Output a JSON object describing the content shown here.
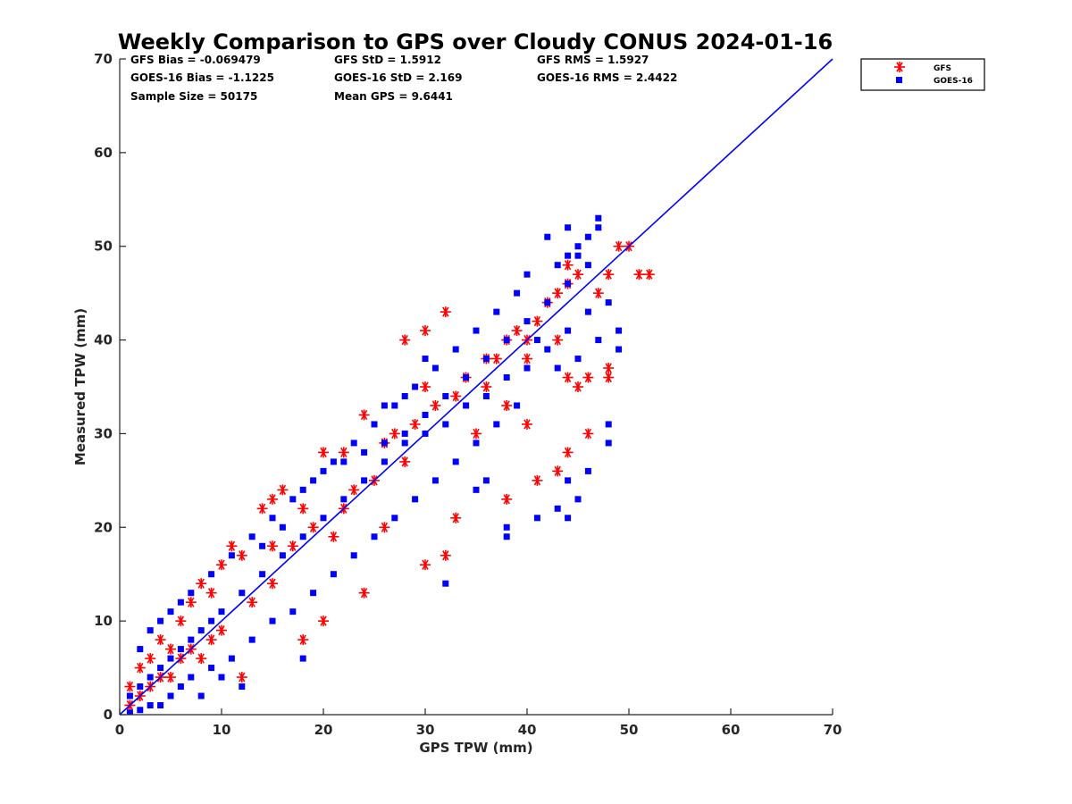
{
  "chart_data": {
    "type": "scatter",
    "title": "Weekly Comparison to GPS over Cloudy CONUS 2024-01-16",
    "xlabel": "GPS TPW (mm)",
    "ylabel": "Measured TPW (mm)",
    "xlim": [
      0,
      70
    ],
    "ylim": [
      0,
      70
    ],
    "xticks": [
      "0",
      "10",
      "20",
      "30",
      "40",
      "50",
      "60",
      "70"
    ],
    "yticks": [
      "0",
      "10",
      "20",
      "30",
      "40",
      "50",
      "60",
      "70"
    ],
    "grid": false,
    "legend_position": "outside top-right",
    "stats": [
      [
        "GFS Bias = -0.069479",
        "GFS StD = 1.5912",
        "GFS RMS = 1.5927"
      ],
      [
        "GOES-16 Bias = -1.1225",
        "GOES-16 StD = 2.169",
        "GOES-16 RMS = 2.4422"
      ],
      [
        "Sample Size = 50175",
        "Mean GPS = 9.6441"
      ]
    ],
    "reference_line": {
      "x": [
        0,
        70
      ],
      "y": [
        0,
        70
      ],
      "color": "#0000ff"
    },
    "series": [
      {
        "name": "GFS",
        "marker": "asterisk",
        "color": "#ff0000",
        "points": [
          [
            1,
            3
          ],
          [
            2,
            5
          ],
          [
            3,
            6
          ],
          [
            4,
            8
          ],
          [
            5,
            7
          ],
          [
            6,
            10
          ],
          [
            7,
            12
          ],
          [
            8,
            14
          ],
          [
            9,
            13
          ],
          [
            10,
            16
          ],
          [
            11,
            18
          ],
          [
            12,
            17
          ],
          [
            14,
            22
          ],
          [
            15,
            23
          ],
          [
            16,
            24
          ],
          [
            12,
            4
          ],
          [
            18,
            8
          ],
          [
            20,
            10
          ],
          [
            24,
            13
          ],
          [
            20,
            28
          ],
          [
            22,
            28
          ],
          [
            24,
            32
          ],
          [
            30,
            16
          ],
          [
            32,
            17
          ],
          [
            33,
            21
          ],
          [
            30,
            35
          ],
          [
            32,
            43
          ],
          [
            28,
            40
          ],
          [
            30,
            41
          ],
          [
            38,
            23
          ],
          [
            41,
            25
          ],
          [
            43,
            26
          ],
          [
            44,
            28
          ],
          [
            46,
            30
          ],
          [
            38,
            33
          ],
          [
            40,
            31
          ],
          [
            44,
            36
          ],
          [
            45,
            35
          ],
          [
            46,
            36
          ],
          [
            47,
            45
          ],
          [
            48,
            47
          ],
          [
            49,
            50
          ],
          [
            50,
            50
          ],
          [
            51,
            47
          ],
          [
            52,
            47
          ],
          [
            48,
            37
          ],
          [
            48,
            36
          ],
          [
            43,
            40
          ],
          [
            44,
            46
          ],
          [
            45,
            47
          ],
          [
            26,
            29
          ],
          [
            27,
            30
          ],
          [
            35,
            30
          ],
          [
            36,
            35
          ],
          [
            40,
            40
          ],
          [
            42,
            44
          ],
          [
            34,
            36
          ],
          [
            36,
            38
          ],
          [
            38,
            40
          ],
          [
            40,
            38
          ],
          [
            28,
            27
          ],
          [
            25,
            25
          ],
          [
            22,
            22
          ],
          [
            26,
            20
          ],
          [
            19,
            20
          ],
          [
            17,
            18
          ],
          [
            13,
            12
          ],
          [
            9,
            8
          ],
          [
            6,
            6
          ],
          [
            4,
            4
          ],
          [
            3,
            3
          ],
          [
            2,
            2
          ],
          [
            1,
            1
          ],
          [
            7,
            7
          ],
          [
            15,
            14
          ],
          [
            21,
            19
          ],
          [
            23,
            24
          ],
          [
            29,
            31
          ],
          [
            31,
            33
          ],
          [
            33,
            34
          ],
          [
            37,
            38
          ],
          [
            39,
            41
          ],
          [
            41,
            42
          ],
          [
            43,
            45
          ],
          [
            15,
            18
          ],
          [
            18,
            22
          ],
          [
            10,
            9
          ],
          [
            8,
            6
          ],
          [
            5,
            4
          ],
          [
            44,
            48
          ]
        ]
      },
      {
        "name": "GOES-16",
        "marker": "square",
        "color": "#0000ff",
        "points": [
          [
            1,
            2
          ],
          [
            2,
            3
          ],
          [
            3,
            4
          ],
          [
            4,
            5
          ],
          [
            5,
            6
          ],
          [
            6,
            7
          ],
          [
            7,
            8
          ],
          [
            8,
            9
          ],
          [
            9,
            10
          ],
          [
            10,
            11
          ],
          [
            12,
            13
          ],
          [
            14,
            15
          ],
          [
            16,
            17
          ],
          [
            18,
            19
          ],
          [
            20,
            21
          ],
          [
            22,
            23
          ],
          [
            24,
            25
          ],
          [
            26,
            27
          ],
          [
            28,
            30
          ],
          [
            30,
            32
          ],
          [
            32,
            34
          ],
          [
            34,
            36
          ],
          [
            36,
            38
          ],
          [
            38,
            40
          ],
          [
            40,
            42
          ],
          [
            42,
            44
          ],
          [
            44,
            46
          ],
          [
            46,
            48
          ],
          [
            47,
            52
          ],
          [
            45,
            50
          ],
          [
            44,
            52
          ],
          [
            41,
            40
          ],
          [
            49,
            39
          ],
          [
            49,
            41
          ],
          [
            48,
            31
          ],
          [
            48,
            29
          ],
          [
            43,
            22
          ],
          [
            41,
            21
          ],
          [
            38,
            19
          ],
          [
            38,
            20
          ],
          [
            32,
            14
          ],
          [
            35,
            24
          ],
          [
            36,
            25
          ],
          [
            46,
            26
          ],
          [
            44,
            25
          ],
          [
            45,
            23
          ],
          [
            44,
            21
          ],
          [
            18,
            6
          ],
          [
            12,
            3
          ],
          [
            10,
            4
          ],
          [
            8,
            2
          ],
          [
            6,
            3
          ],
          [
            4,
            1
          ],
          [
            2,
            0.5
          ],
          [
            1,
            0.2
          ],
          [
            3,
            1
          ],
          [
            5,
            2
          ],
          [
            7,
            4
          ],
          [
            9,
            5
          ],
          [
            11,
            6
          ],
          [
            13,
            8
          ],
          [
            15,
            10
          ],
          [
            17,
            11
          ],
          [
            19,
            13
          ],
          [
            21,
            15
          ],
          [
            23,
            17
          ],
          [
            25,
            19
          ],
          [
            27,
            21
          ],
          [
            29,
            23
          ],
          [
            31,
            25
          ],
          [
            33,
            27
          ],
          [
            35,
            29
          ],
          [
            37,
            31
          ],
          [
            39,
            33
          ],
          [
            2,
            7
          ],
          [
            3,
            9
          ],
          [
            4,
            10
          ],
          [
            5,
            11
          ],
          [
            6,
            12
          ],
          [
            7,
            13
          ],
          [
            9,
            15
          ],
          [
            11,
            17
          ],
          [
            13,
            19
          ],
          [
            15,
            21
          ],
          [
            17,
            23
          ],
          [
            19,
            25
          ],
          [
            21,
            27
          ],
          [
            23,
            29
          ],
          [
            25,
            31
          ],
          [
            27,
            33
          ],
          [
            29,
            35
          ],
          [
            31,
            37
          ],
          [
            33,
            39
          ],
          [
            35,
            41
          ],
          [
            37,
            43
          ],
          [
            39,
            45
          ],
          [
            43,
            48
          ],
          [
            44,
            49
          ],
          [
            45,
            49
          ],
          [
            47,
            53
          ],
          [
            46,
            51
          ],
          [
            42,
            51
          ],
          [
            40,
            47
          ],
          [
            26,
            33
          ],
          [
            28,
            34
          ],
          [
            30,
            38
          ],
          [
            14,
            18
          ],
          [
            16,
            20
          ],
          [
            18,
            24
          ],
          [
            20,
            26
          ],
          [
            22,
            27
          ],
          [
            24,
            28
          ],
          [
            26,
            29
          ],
          [
            28,
            29
          ],
          [
            30,
            30
          ],
          [
            32,
            31
          ],
          [
            34,
            33
          ],
          [
            36,
            34
          ],
          [
            38,
            36
          ],
          [
            40,
            37
          ],
          [
            42,
            39
          ],
          [
            44,
            41
          ],
          [
            46,
            43
          ],
          [
            48,
            44
          ],
          [
            47,
            40
          ],
          [
            45,
            38
          ],
          [
            43,
            37
          ]
        ]
      }
    ]
  }
}
